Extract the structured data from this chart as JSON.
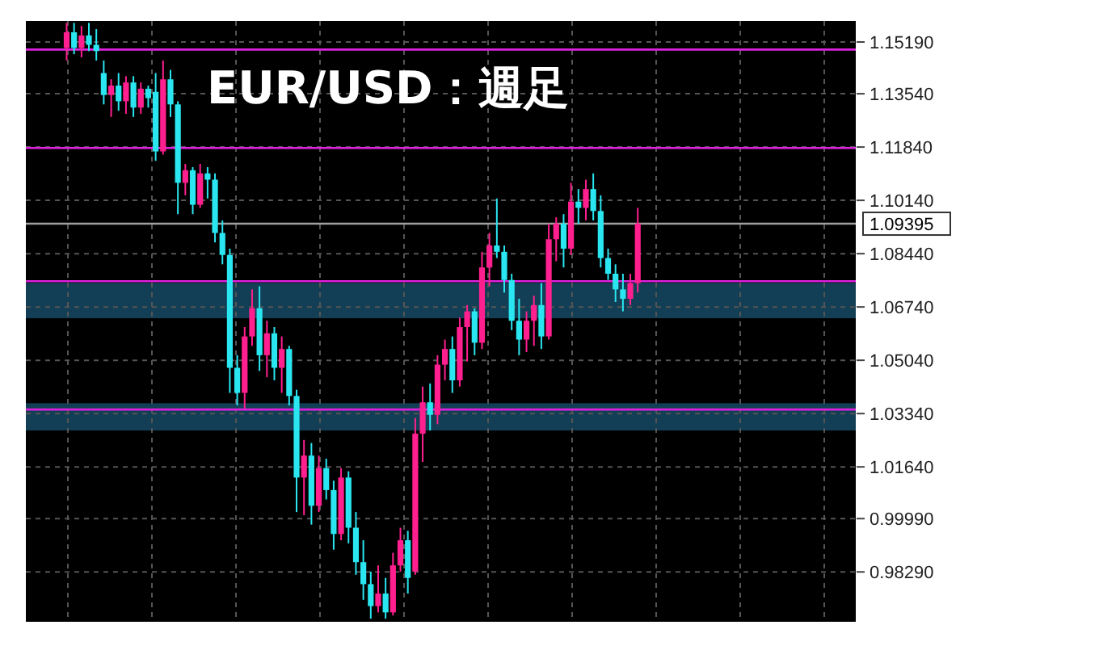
{
  "chart_data": {
    "type": "candlestick",
    "title": "EUR/USD：週足",
    "categories": [
      null,
      null,
      null,
      null,
      null,
      null,
      null,
      null,
      null,
      null,
      null,
      null,
      null,
      null,
      null,
      null,
      null,
      null,
      null,
      null,
      null,
      null,
      null,
      null,
      null,
      null,
      null,
      null,
      null,
      null,
      null,
      null,
      null,
      null,
      null,
      null,
      null,
      null,
      null,
      null,
      null,
      null,
      null,
      null,
      null,
      null,
      null,
      null,
      null,
      null,
      null,
      null,
      null,
      null,
      null,
      null,
      null,
      null,
      null,
      null,
      null,
      null,
      null,
      null,
      null,
      null,
      null,
      null,
      null,
      null,
      null,
      null,
      null,
      null,
      null,
      null,
      null,
      null,
      null,
      null,
      null,
      null,
      null,
      null,
      null,
      null,
      null,
      null,
      null,
      null,
      null,
      null,
      null,
      null,
      null,
      null,
      null,
      null,
      null,
      null,
      null,
      null,
      null,
      null,
      null,
      null,
      null,
      null,
      null,
      null,
      null,
      null
    ],
    "ohlc": [
      null,
      null,
      null,
      null,
      null,
      [
        1.15,
        1.158,
        1.146,
        1.155
      ],
      [
        1.155,
        1.158,
        1.148,
        1.15
      ],
      [
        1.15,
        1.157,
        1.147,
        1.154
      ],
      [
        1.154,
        1.158,
        1.149,
        1.151
      ],
      [
        1.151,
        1.156,
        1.146,
        1.149
      ],
      [
        1.142,
        1.146,
        1.132,
        1.135
      ],
      [
        1.135,
        1.14,
        1.128,
        1.138
      ],
      [
        1.138,
        1.142,
        1.13,
        1.133
      ],
      [
        1.133,
        1.141,
        1.129,
        1.139
      ],
      [
        1.139,
        1.141,
        1.128,
        1.131
      ],
      [
        1.131,
        1.139,
        1.129,
        1.137
      ],
      [
        1.137,
        1.138,
        1.131,
        1.134
      ],
      [
        1.136,
        1.142,
        1.114,
        1.117
      ],
      [
        1.117,
        1.146,
        1.116,
        1.14
      ],
      [
        1.14,
        1.143,
        1.128,
        1.132
      ],
      [
        1.132,
        1.133,
        1.097,
        1.107
      ],
      [
        1.107,
        1.113,
        1.103,
        1.111
      ],
      [
        1.111,
        1.112,
        1.097,
        1.1
      ],
      [
        1.1,
        1.113,
        1.099,
        1.11
      ],
      [
        1.11,
        1.112,
        1.102,
        1.108
      ],
      [
        1.108,
        1.11,
        1.088,
        1.091
      ],
      [
        1.091,
        1.095,
        1.081,
        1.084
      ],
      [
        1.084,
        1.086,
        1.04,
        1.048
      ],
      [
        1.048,
        1.052,
        1.036,
        1.04
      ],
      [
        1.04,
        1.061,
        1.035,
        1.058
      ],
      [
        1.058,
        1.073,
        1.055,
        1.067
      ],
      [
        1.067,
        1.074,
        1.047,
        1.052
      ],
      [
        1.052,
        1.063,
        1.045,
        1.059
      ],
      [
        1.059,
        1.061,
        1.044,
        1.048
      ],
      [
        1.048,
        1.058,
        1.04,
        1.054
      ],
      [
        1.054,
        1.055,
        1.036,
        1.039
      ],
      [
        1.039,
        1.041,
        1.002,
        1.013
      ],
      [
        1.013,
        1.025,
        1.001,
        1.02
      ],
      [
        1.02,
        1.024,
        0.998,
        1.004
      ],
      [
        1.004,
        1.02,
        1.002,
        1.016
      ],
      [
        1.016,
        1.019,
        1.006,
        1.009
      ],
      [
        1.009,
        1.012,
        0.99,
        0.995
      ],
      [
        0.995,
        1.016,
        0.993,
        1.013
      ],
      [
        1.013,
        1.015,
        0.992,
        0.997
      ],
      [
        0.997,
        1.002,
        0.982,
        0.986
      ],
      [
        0.986,
        0.993,
        0.974,
        0.979
      ],
      [
        0.979,
        0.983,
        0.968,
        0.972
      ],
      [
        0.972,
        0.985,
        0.97,
        0.976
      ],
      [
        0.976,
        0.981,
        0.968,
        0.97
      ],
      [
        0.97,
        0.989,
        0.969,
        0.985
      ],
      [
        0.985,
        0.997,
        0.983,
        0.993
      ],
      [
        0.993,
        0.996,
        0.976,
        0.981
      ],
      [
        0.983,
        1.032,
        0.982,
        1.027
      ],
      [
        1.027,
        1.042,
        1.018,
        1.037
      ],
      [
        1.037,
        1.043,
        1.028,
        1.033
      ],
      [
        1.033,
        1.052,
        1.03,
        1.049
      ],
      [
        1.049,
        1.057,
        1.044,
        1.054
      ],
      [
        1.054,
        1.058,
        1.04,
        1.044
      ],
      [
        1.044,
        1.064,
        1.042,
        1.061
      ],
      [
        1.061,
        1.068,
        1.05,
        1.066
      ],
      [
        1.066,
        1.067,
        1.052,
        1.056
      ],
      [
        1.056,
        1.085,
        1.054,
        1.08
      ],
      [
        1.08,
        1.091,
        1.074,
        1.087
      ],
      [
        1.087,
        1.102,
        1.083,
        1.085
      ],
      [
        1.085,
        1.087,
        1.072,
        1.076
      ],
      [
        1.076,
        1.078,
        1.06,
        1.063
      ],
      [
        1.063,
        1.07,
        1.052,
        1.057
      ],
      [
        1.057,
        1.066,
        1.053,
        1.063
      ],
      [
        1.063,
        1.071,
        1.055,
        1.068
      ],
      [
        1.068,
        1.075,
        1.054,
        1.058
      ],
      [
        1.058,
        1.094,
        1.057,
        1.089
      ],
      [
        1.089,
        1.096,
        1.082,
        1.094
      ],
      [
        1.094,
        1.097,
        1.08,
        1.086
      ],
      [
        1.086,
        1.107,
        1.084,
        1.101
      ],
      [
        1.101,
        1.105,
        1.094,
        1.099
      ],
      [
        1.099,
        1.108,
        1.095,
        1.105
      ],
      [
        1.105,
        1.11,
        1.095,
        1.098
      ],
      [
        1.098,
        1.103,
        1.08,
        1.083
      ],
      [
        1.083,
        1.086,
        1.076,
        1.078
      ],
      [
        1.078,
        1.081,
        1.069,
        1.073
      ],
      [
        1.073,
        1.078,
        1.066,
        1.07
      ],
      [
        1.07,
        1.078,
        1.068,
        1.075
      ],
      [
        1.075,
        1.099,
        1.072,
        1.094
      ],
      null,
      null,
      null,
      null,
      null,
      null,
      null,
      null,
      null,
      null,
      null,
      null,
      null,
      null,
      null,
      null,
      null,
      null,
      null,
      null,
      null,
      null,
      null,
      null,
      null,
      null,
      null,
      null,
      null
    ],
    "colors": [
      null,
      null,
      null,
      null,
      null,
      "#ff1f8e",
      "#29e6f0",
      "#ff1f8e",
      "#29e6f0",
      "#29e6f0",
      "#29e6f0",
      "#ff1f8e",
      "#29e6f0",
      "#ff1f8e",
      "#29e6f0",
      "#ff1f8e",
      "#29e6f0",
      "#29e6f0",
      "#ff1f8e",
      "#29e6f0",
      "#29e6f0",
      "#ff1f8e",
      "#29e6f0",
      "#ff1f8e",
      "#29e6f0",
      "#29e6f0",
      "#29e6f0",
      "#29e6f0",
      "#29e6f0",
      "#ff1f8e",
      "#ff1f8e",
      "#29e6f0",
      "#ff1f8e",
      "#29e6f0",
      "#ff1f8e",
      "#29e6f0",
      "#29e6f0",
      "#ff1f8e",
      "#29e6f0",
      "#ff1f8e",
      "#29e6f0",
      "#29e6f0",
      "#ff1f8e",
      "#29e6f0",
      "#29e6f0",
      "#29e6f0",
      "#29e6f0",
      "#ff1f8e",
      "#29e6f0",
      "#ff1f8e",
      "#ff1f8e",
      "#29e6f0",
      "#ff1f8e",
      "#ff1f8e",
      "#29e6f0",
      "#ff1f8e",
      "#ff1f8e",
      "#29e6f0",
      "#ff1f8e",
      "#ff1f8e",
      "#29e6f0",
      "#ff1f8e",
      "#ff1f8e",
      "#29e6f0",
      "#29e6f0",
      "#29e6f0",
      "#29e6f0",
      "#ff1f8e",
      "#ff1f8e",
      "#29e6f0",
      "#ff1f8e",
      "#ff1f8e",
      "#29e6f0",
      "#ff1f8e",
      "#29e6f0",
      "#ff1f8e",
      "#29e6f0",
      "#29e6f0",
      "#29e6f0",
      "#29e6f0",
      "#29e6f0",
      "#ff1f8e",
      "#ff1f8e",
      null,
      null,
      null,
      null,
      null,
      null,
      null,
      null,
      null,
      null,
      null,
      null,
      null,
      null,
      null,
      null,
      null,
      null,
      null,
      null,
      null,
      null,
      null,
      null,
      null,
      null,
      null,
      null,
      null
    ],
    "ylim": [
      0.967,
      1.1586
    ],
    "yticks": [
      {
        "value": 1.1519,
        "label": "1.15190"
      },
      {
        "value": 1.1354,
        "label": "1.13540"
      },
      {
        "value": 1.1184,
        "label": "1.11840"
      },
      {
        "value": 1.1014,
        "label": "1.10140"
      },
      {
        "value": 1.0844,
        "label": "1.08440"
      },
      {
        "value": 1.0674,
        "label": "1.06740"
      },
      {
        "value": 1.0504,
        "label": "1.05040"
      },
      {
        "value": 1.0334,
        "label": "1.03340"
      },
      {
        "value": 1.0164,
        "label": "1.01640"
      },
      {
        "value": 0.9999,
        "label": "0.99990"
      },
      {
        "value": 0.9829,
        "label": "0.98290"
      }
    ],
    "ref_lines": [
      {
        "axis": "y",
        "value": 1.1495,
        "color": "#e020e0"
      },
      {
        "axis": "y",
        "value": 1.1181,
        "color": "#e020e0"
      },
      {
        "axis": "y",
        "value": 1.0756,
        "color": "#e020e0"
      },
      {
        "axis": "y",
        "value": 1.0347,
        "color": "#e020e0"
      },
      {
        "axis": "y",
        "value": 1.09395,
        "label": "1.09395",
        "color": "#a0a0a0"
      }
    ],
    "bands": [
      {
        "axis": "y",
        "from": 1.0638,
        "to": 1.0751,
        "color": "#123f55"
      },
      {
        "axis": "y",
        "from": 1.028,
        "to": 1.0367,
        "color": "#123f55"
      }
    ],
    "grid": true,
    "tick_labels": "y"
  }
}
